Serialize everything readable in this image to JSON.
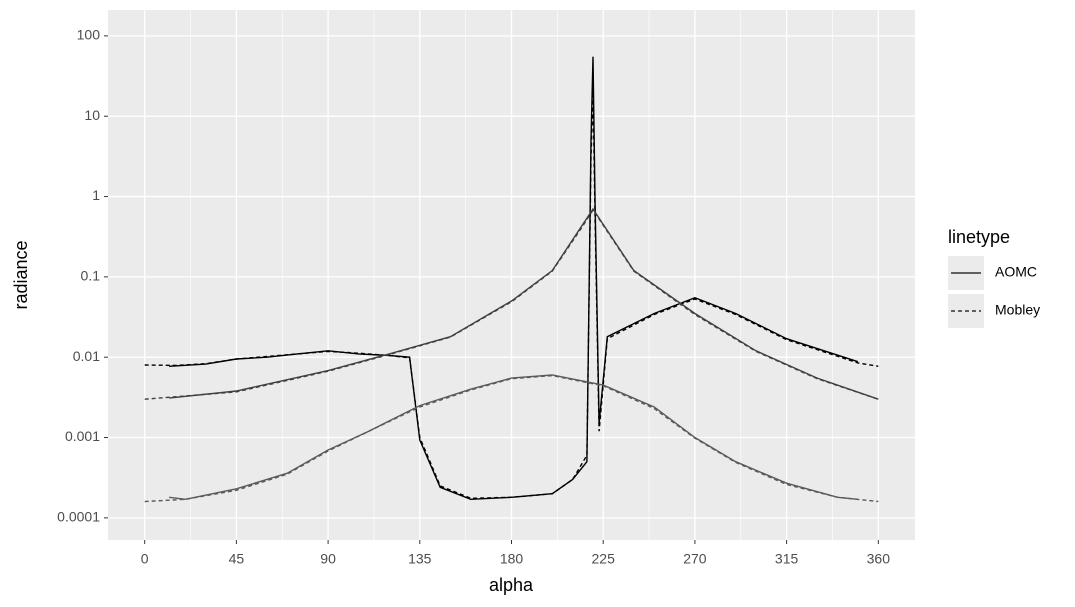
{
  "chart_data": {
    "type": "line",
    "x_label": "alpha",
    "y_label": "radiance",
    "legend_title": "linetype",
    "xlim": [
      -18,
      378
    ],
    "xticks": [
      0,
      45,
      90,
      135,
      180,
      225,
      270,
      315,
      360
    ],
    "xminor": [
      22.5,
      67.5,
      112.5,
      157.5,
      202.5,
      247.5,
      292.5,
      337.5
    ],
    "ylim": [
      5.3e-05,
      210
    ],
    "yticks": [
      100,
      10,
      1,
      0.1,
      0.01,
      0.001,
      0.0001
    ],
    "ylog": true,
    "grid": true,
    "legend": "right",
    "series": [
      {
        "name": "AOMC",
        "linetype": "solid",
        "color": "#000000",
        "x": [
          12,
          30,
          45,
          60,
          75,
          90,
          105,
          120,
          130,
          135,
          145,
          160,
          180,
          200,
          210,
          217,
          219,
          220,
          221,
          223,
          227,
          250,
          270,
          290,
          315,
          350
        ],
        "values": [
          0.0077,
          0.0082,
          0.0095,
          0.01,
          0.011,
          0.012,
          0.011,
          0.0105,
          0.01,
          0.00093,
          0.00024,
          0.00017,
          0.00018,
          0.0002,
          0.0003,
          0.0005,
          5,
          55,
          0.8,
          0.0015,
          0.018,
          0.035,
          0.055,
          0.035,
          0.017,
          0.0088
        ]
      },
      {
        "name": "Mobley",
        "linetype": "dashed",
        "color": "#000000",
        "x": [
          0,
          15,
          30,
          45,
          60,
          75,
          90,
          105,
          120,
          130,
          135,
          145,
          160,
          180,
          200,
          210,
          217,
          219,
          220,
          221,
          223,
          227,
          250,
          270,
          290,
          315,
          350,
          360
        ],
        "values": [
          0.008,
          0.0079,
          0.0083,
          0.0095,
          0.0102,
          0.011,
          0.0118,
          0.0112,
          0.0105,
          0.0098,
          0.001,
          0.00025,
          0.000175,
          0.00018,
          0.0002,
          0.0003,
          0.0006,
          3,
          20,
          0.5,
          0.0012,
          0.017,
          0.034,
          0.053,
          0.034,
          0.0165,
          0.0085,
          0.0077
        ]
      },
      {
        "name": "AOMC",
        "linetype": "solid",
        "color": "#404040",
        "x": [
          12,
          45,
          90,
          120,
          150,
          180,
          200,
          215,
          220,
          225,
          240,
          270,
          300,
          330,
          360
        ],
        "values": [
          0.0031,
          0.0038,
          0.0068,
          0.011,
          0.018,
          0.05,
          0.12,
          0.45,
          0.7,
          0.45,
          0.12,
          0.035,
          0.012,
          0.0055,
          0.003
        ]
      },
      {
        "name": "Mobley",
        "linetype": "dashed",
        "color": "#404040",
        "x": [
          0,
          45,
          90,
          120,
          150,
          180,
          200,
          215,
          220,
          225,
          240,
          270,
          300,
          330,
          360
        ],
        "values": [
          0.003,
          0.0037,
          0.0067,
          0.0108,
          0.0178,
          0.049,
          0.118,
          0.43,
          0.68,
          0.44,
          0.118,
          0.034,
          0.0118,
          0.0054,
          0.003
        ]
      },
      {
        "name": "AOMC",
        "linetype": "solid",
        "color": "#5a5a5a",
        "x": [
          12,
          20,
          45,
          70,
          90,
          110,
          135,
          160,
          180,
          200,
          225,
          250,
          270,
          290,
          315,
          340,
          350
        ],
        "values": [
          0.00018,
          0.00017,
          0.00023,
          0.00036,
          0.0007,
          0.0012,
          0.0025,
          0.004,
          0.0055,
          0.006,
          0.0045,
          0.0024,
          0.001,
          0.0005,
          0.00027,
          0.00018,
          0.00017
        ]
      },
      {
        "name": "Mobley",
        "linetype": "dashed",
        "color": "#5a5a5a",
        "x": [
          0,
          20,
          45,
          70,
          90,
          110,
          135,
          160,
          180,
          200,
          225,
          250,
          270,
          290,
          315,
          340,
          360
        ],
        "values": [
          0.00016,
          0.00017,
          0.00022,
          0.00035,
          0.00068,
          0.0012,
          0.0024,
          0.0039,
          0.0054,
          0.0059,
          0.0044,
          0.0023,
          0.00098,
          0.00049,
          0.00026,
          0.00018,
          0.00016
        ]
      }
    ]
  }
}
